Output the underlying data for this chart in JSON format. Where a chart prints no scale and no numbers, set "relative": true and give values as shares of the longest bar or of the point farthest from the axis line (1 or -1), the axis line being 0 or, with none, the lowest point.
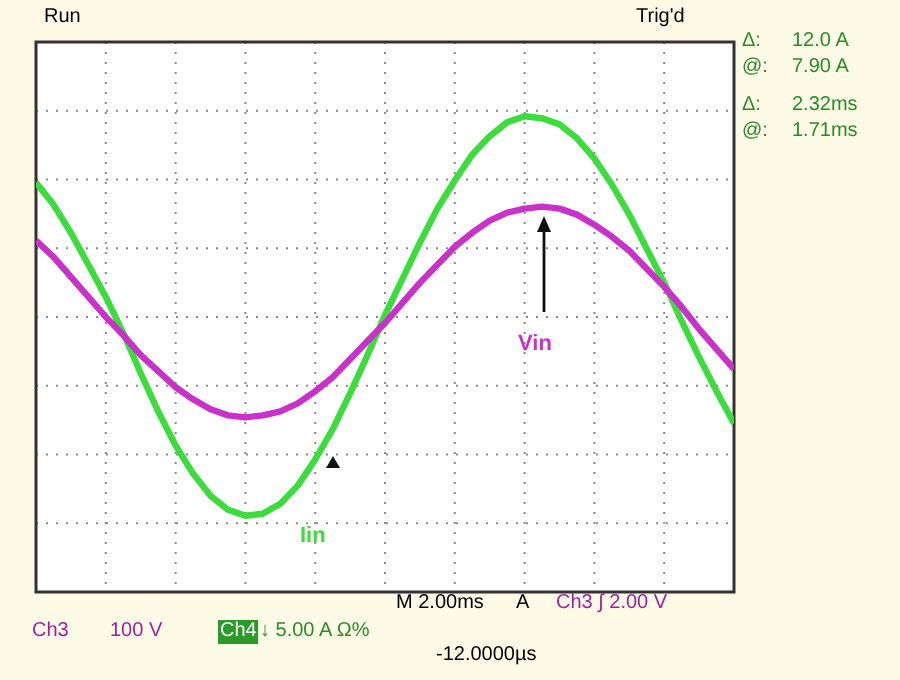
{
  "chart_data": {
    "type": "line",
    "relative": true,
    "categories": [
      null,
      null,
      null,
      null,
      null,
      null,
      null,
      null,
      null,
      null,
      null,
      null,
      null,
      null,
      null,
      null,
      null,
      null,
      null,
      null,
      null,
      null,
      null,
      null,
      null,
      null,
      null,
      null,
      null,
      null,
      null,
      null,
      null,
      null,
      null,
      null,
      null,
      null,
      null,
      null,
      null
    ],
    "grid": true,
    "marker": "none",
    "line_style": "solid",
    "series": [
      {
        "name": "Iin",
        "color": "#3ddc3d",
        "values": [
          0.67,
          0.56,
          0.42,
          0.26,
          0.1,
          -0.08,
          -0.28,
          -0.47,
          -0.64,
          -0.78,
          -0.89,
          -0.96,
          -0.99,
          -0.98,
          -0.93,
          -0.84,
          -0.71,
          -0.56,
          -0.38,
          -0.19,
          0.01,
          0.19,
          0.37,
          0.54,
          0.68,
          0.81,
          0.9,
          0.97,
          1.0,
          0.99,
          0.96,
          0.89,
          0.79,
          0.66,
          0.51,
          0.34,
          0.17,
          -0.02,
          -0.2,
          -0.37,
          -0.53
        ]
      },
      {
        "name": "Vin",
        "color": "#c832c8",
        "values": [
          0.38,
          0.3,
          0.2,
          0.1,
          0.0,
          -0.09,
          -0.19,
          -0.27,
          -0.35,
          -0.41,
          -0.46,
          -0.49,
          -0.5,
          -0.49,
          -0.47,
          -0.43,
          -0.37,
          -0.3,
          -0.21,
          -0.12,
          -0.03,
          0.07,
          0.17,
          0.26,
          0.35,
          0.42,
          0.48,
          0.52,
          0.54,
          0.55,
          0.54,
          0.51,
          0.46,
          0.4,
          0.33,
          0.24,
          0.15,
          0.05,
          -0.06,
          -0.16,
          -0.26
        ]
      }
    ],
    "annotations": [
      "Run",
      "Trig'd",
      "Δ:",
      "12.0 A",
      "@:",
      "7.90 A",
      "Δ:",
      "2.32ms",
      "@:",
      "1.71ms",
      "M 2.00ms",
      "A",
      "Ch3 ∫ 2.00 V",
      "Ch3",
      "100 V",
      "Ch4",
      "↓ 5.00 A Ω%",
      "-12.0000µs"
    ]
  }
}
